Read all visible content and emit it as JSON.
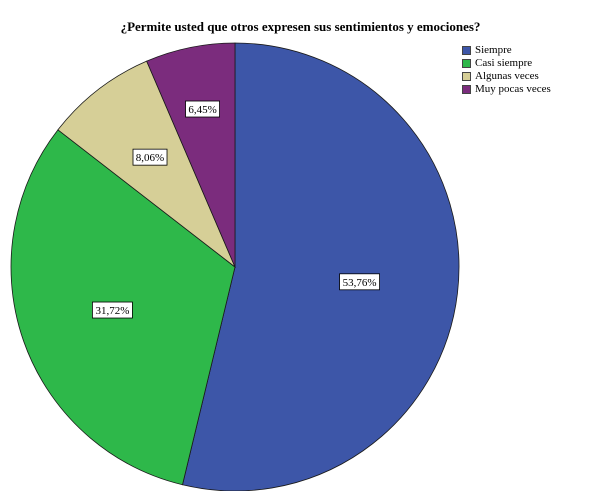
{
  "chart_data": {
    "type": "pie",
    "title": "¿Permite usted que otros expresen sus sentimientos y emociones?",
    "categories": [
      "Siempre",
      "Casi siempre",
      "Algunas veces",
      "Muy pocas veces"
    ],
    "values": [
      53.76,
      31.72,
      8.06,
      6.45
    ],
    "labels": [
      "53,76%",
      "31,72%",
      "8,06%",
      "6,45%"
    ],
    "colors": [
      "#3d56a8",
      "#2eb84a",
      "#d6cf97",
      "#7b2c7d"
    ],
    "start_angle_deg": 0,
    "direction": "clockwise",
    "legend_position": "top-right"
  }
}
